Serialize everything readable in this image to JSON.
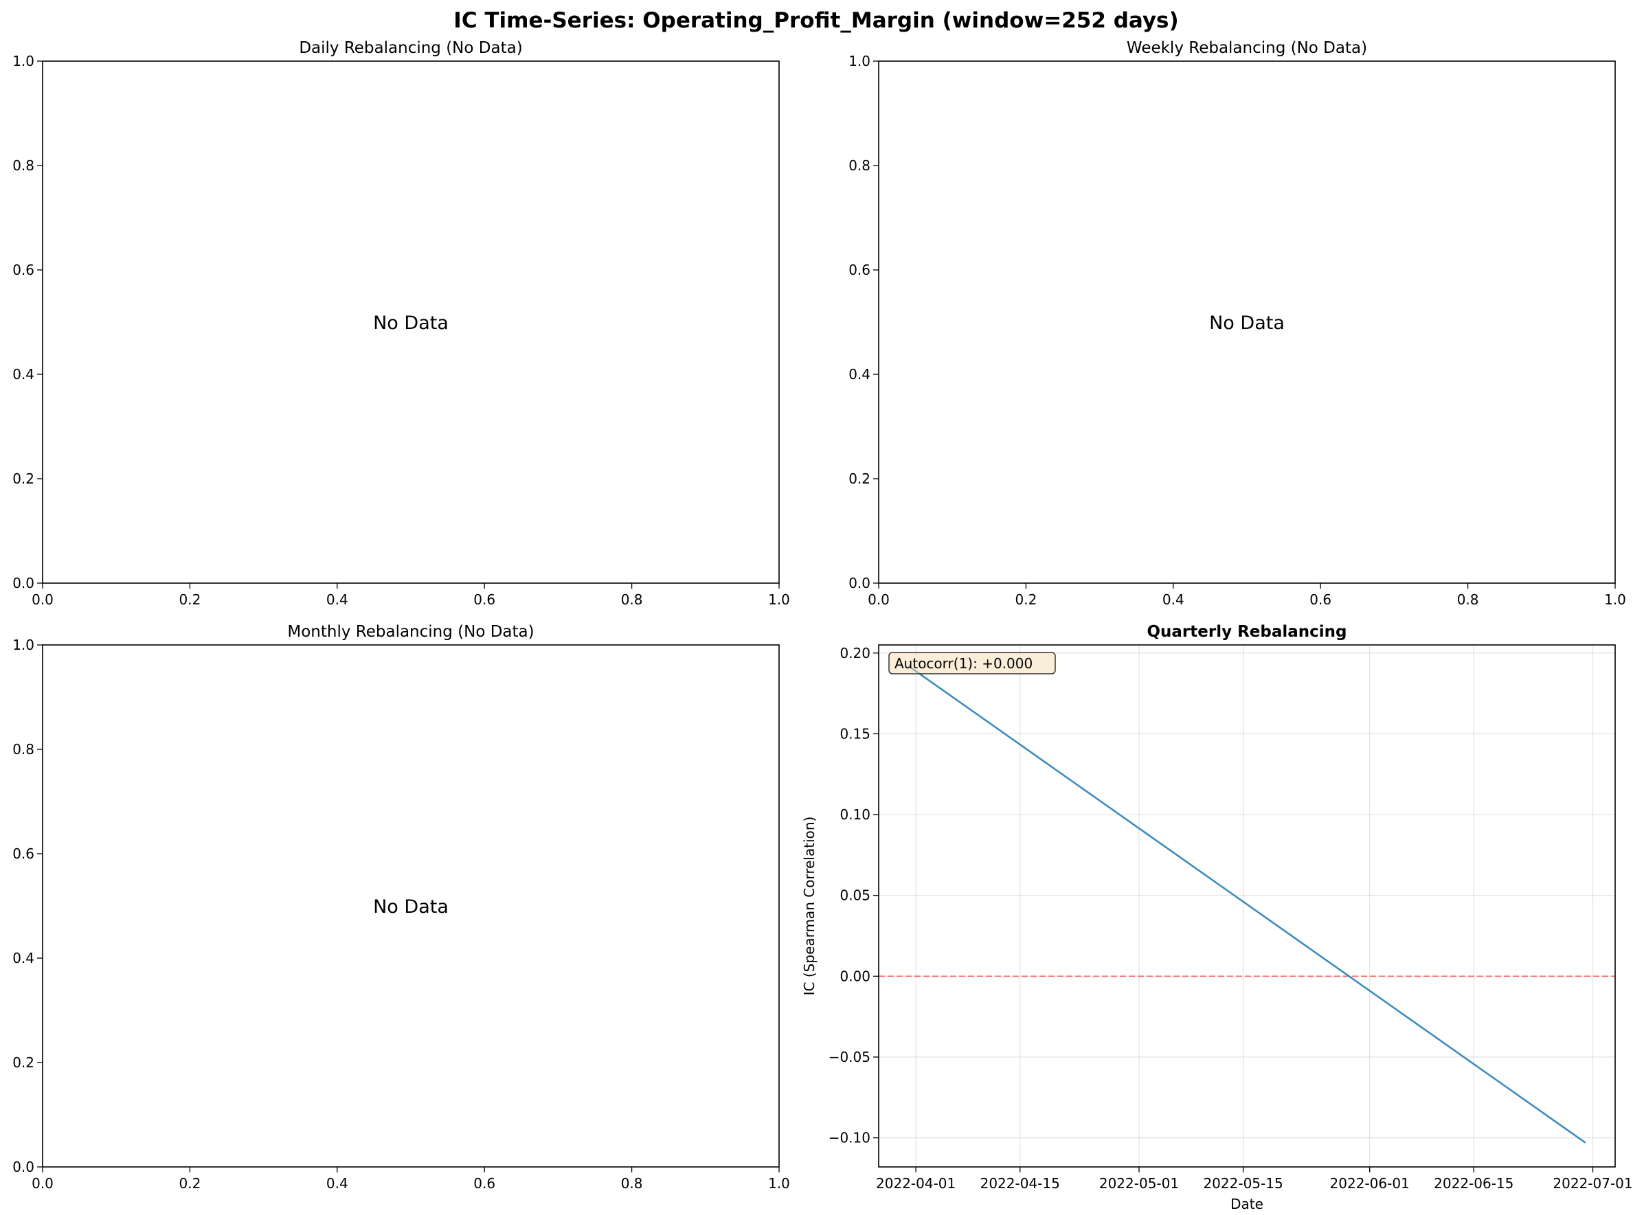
{
  "figure": {
    "title": "IC Time-Series: Operating_Profit_Margin (window=252 days)"
  },
  "chart_data": [
    {
      "type": "line",
      "title": "Daily Rebalancing (No Data)",
      "xlabel": "",
      "ylabel": "",
      "xlim": [
        0,
        1
      ],
      "ylim": [
        0,
        1
      ],
      "x_ticks": [
        "0.0",
        "0.2",
        "0.4",
        "0.6",
        "0.8",
        "1.0"
      ],
      "y_ticks": [
        "0.0",
        "0.2",
        "0.4",
        "0.6",
        "0.8",
        "1.0"
      ],
      "annotation": "No Data",
      "grid": false,
      "series": []
    },
    {
      "type": "line",
      "title": "Weekly Rebalancing (No Data)",
      "xlabel": "",
      "ylabel": "",
      "xlim": [
        0,
        1
      ],
      "ylim": [
        0,
        1
      ],
      "x_ticks": [
        "0.0",
        "0.2",
        "0.4",
        "0.6",
        "0.8",
        "1.0"
      ],
      "y_ticks": [
        "0.0",
        "0.2",
        "0.4",
        "0.6",
        "0.8",
        "1.0"
      ],
      "annotation": "No Data",
      "grid": false,
      "series": []
    },
    {
      "type": "line",
      "title": "Monthly Rebalancing (No Data)",
      "xlabel": "",
      "ylabel": "",
      "xlim": [
        0,
        1
      ],
      "ylim": [
        0,
        1
      ],
      "x_ticks": [
        "0.0",
        "0.2",
        "0.4",
        "0.6",
        "0.8",
        "1.0"
      ],
      "y_ticks": [
        "0.0",
        "0.2",
        "0.4",
        "0.6",
        "0.8",
        "1.0"
      ],
      "annotation": "No Data",
      "grid": false,
      "series": []
    },
    {
      "type": "line",
      "title": "Quarterly Rebalancing",
      "xlabel": "Date",
      "ylabel": "IC (Spearman Correlation)",
      "xlim": [
        "2022-03-27",
        "2022-07-04"
      ],
      "ylim": [
        -0.118,
        0.205
      ],
      "x_ticks": [
        "2022-04-01",
        "2022-04-15",
        "2022-05-01",
        "2022-05-15",
        "2022-06-01",
        "2022-06-15",
        "2022-07-01"
      ],
      "y_ticks": [
        "−0.10",
        "−0.05",
        "0.00",
        "0.05",
        "0.10",
        "0.15",
        "0.20"
      ],
      "annotation": "Autocorr(1): +0.000",
      "grid": true,
      "reference_line": {
        "y": 0.0,
        "color": "#ff0000",
        "style": "dashed"
      },
      "series": [
        {
          "x": [
            "2022-03-31",
            "2022-06-30"
          ],
          "y": [
            0.192,
            -0.103
          ],
          "color": "#1f77b4"
        }
      ]
    }
  ]
}
